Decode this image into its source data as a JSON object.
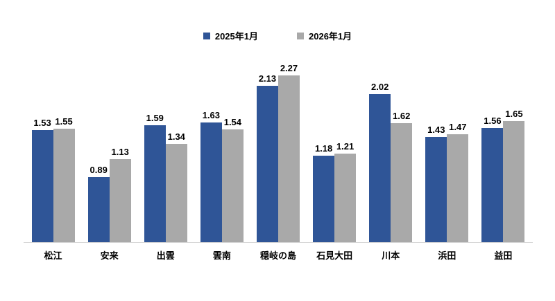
{
  "chart_data": {
    "type": "bar",
    "title": "",
    "categories": [
      "松江",
      "安来",
      "出雲",
      "雲南",
      "穏岐の島",
      "石見大田",
      "川本",
      "浜田",
      "益田"
    ],
    "series": [
      {
        "name": "2025年1月",
        "color": "#2F5597",
        "values": [
          1.53,
          0.89,
          1.59,
          1.63,
          2.13,
          1.18,
          2.02,
          1.43,
          1.56
        ]
      },
      {
        "name": "2026年1月",
        "color": "#A9A9A9",
        "values": [
          1.55,
          1.13,
          1.34,
          1.54,
          2.27,
          1.21,
          1.62,
          1.47,
          1.65
        ]
      }
    ],
    "xlabel": "",
    "ylabel": "",
    "ylim": [
      0,
      2.5
    ],
    "grid": false,
    "legend_position": "top",
    "data_labels": true,
    "label_decimals": 2,
    "axis_line_color": "#d6d6d6",
    "background_color": "#ffffff",
    "text_color": "#000000"
  }
}
